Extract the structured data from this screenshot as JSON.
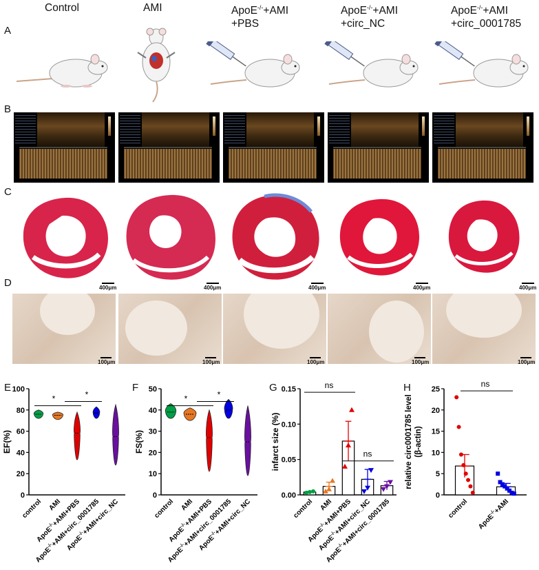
{
  "headers": {
    "control": "Control",
    "ami": "AMI",
    "pbs_line1_base": "ApoE",
    "pbs_line1_sup": "-/-",
    "pbs_line1_rest": "+AMI",
    "pbs_line2": "+PBS",
    "nc_line1_base": "ApoE",
    "nc_line1_sup": "-/-",
    "nc_line1_rest": "+AMI",
    "nc_line2": "+circ_NC",
    "c1785_line1_base": "ApoE",
    "c1785_line1_sup": "-/-",
    "c1785_line1_rest": "+AMI",
    "c1785_line2": "+circ_0001785"
  },
  "panel_letters": {
    "A": "A",
    "B": "B",
    "C": "C",
    "D": "D",
    "E": "E",
    "F": "F",
    "G": "G",
    "H": "H"
  },
  "scale_bars": {
    "histo": "400μm",
    "ihc": "100μm"
  },
  "colors": {
    "control": "#00a046",
    "ami": "#e87722",
    "pbs": "#e00000",
    "c1785": "#0000e0",
    "nc": "#6a0fa0"
  },
  "chart_data": [
    {
      "type": "violin",
      "panel": "E",
      "ylabel": "EF(%)",
      "ylim": [
        0,
        100
      ],
      "yticks": [
        0,
        20,
        40,
        60,
        80,
        100
      ],
      "categories": [
        "control",
        "AMI",
        "ApoE-/-+AMI+PBS",
        "ApoE-/-+AMI+circ_0001785",
        "ApoE-/-+AMI+circ_NC"
      ],
      "series": [
        {
          "median": 76,
          "min": 72,
          "max": 80
        },
        {
          "median": 75,
          "min": 71,
          "max": 78
        },
        {
          "median": 58,
          "min": 33,
          "max": 78
        },
        {
          "median": 77,
          "min": 72,
          "max": 83
        },
        {
          "median": 55,
          "min": 28,
          "max": 85
        }
      ],
      "annotations": [
        "*",
        "*"
      ]
    },
    {
      "type": "violin",
      "panel": "F",
      "ylabel": "FS(%)",
      "ylim": [
        0,
        50
      ],
      "yticks": [
        0,
        10,
        20,
        30,
        40,
        50
      ],
      "categories": [
        "control",
        "AMI",
        "ApoE-/-+AMI+PBS",
        "ApoE-/-+AMI+circ_0001785",
        "ApoE-/-+AMI+circ_NC"
      ],
      "series": [
        {
          "median": 39,
          "min": 36,
          "max": 43
        },
        {
          "median": 38,
          "min": 35,
          "max": 41
        },
        {
          "median": 27,
          "min": 11,
          "max": 40
        },
        {
          "median": 40,
          "min": 36,
          "max": 45
        },
        {
          "median": 25,
          "min": 9,
          "max": 42
        }
      ],
      "annotations": [
        "*",
        "*"
      ]
    },
    {
      "type": "bar",
      "panel": "G",
      "ylabel": "infarct size (%)",
      "ylim": [
        0,
        0.15
      ],
      "yticks": [
        0.0,
        0.05,
        0.1,
        0.15
      ],
      "categories": [
        "control",
        "AMI",
        "ApoE-/-+AMI+PBS",
        "ApoE-/-+AMI+circ_NC",
        "ApoE-/-+AMI+circ_0001785"
      ],
      "values": [
        0.004,
        0.012,
        0.076,
        0.022,
        0.013
      ],
      "errors": [
        0.001,
        0.006,
        0.028,
        0.014,
        0.006
      ],
      "points": [
        [
          0.003,
          0.004,
          0.005
        ],
        [
          0.005,
          0.008,
          0.02
        ],
        [
          0.04,
          0.07,
          0.12
        ],
        [
          0.005,
          0.01,
          0.035
        ],
        [
          0.008,
          0.012,
          0.018
        ]
      ],
      "annotations": [
        "ns",
        "ns"
      ]
    },
    {
      "type": "bar",
      "panel": "H",
      "ylabel_lines": [
        "relative circ0001785 level",
        "(β-actin)"
      ],
      "ylim": [
        0,
        25
      ],
      "yticks": [
        0,
        5,
        10,
        15,
        20,
        25
      ],
      "categories": [
        "control",
        "ApoE-/-+AMI"
      ],
      "values": [
        6.8,
        1.9
      ],
      "errors": [
        2.7,
        0.8
      ],
      "points": [
        [
          23,
          16,
          9.5,
          7,
          5,
          3.5,
          2,
          0.5
        ],
        [
          5,
          3,
          2.5,
          2,
          1.5,
          1,
          0.5,
          0.3
        ]
      ],
      "annotations": [
        "ns"
      ]
    }
  ]
}
